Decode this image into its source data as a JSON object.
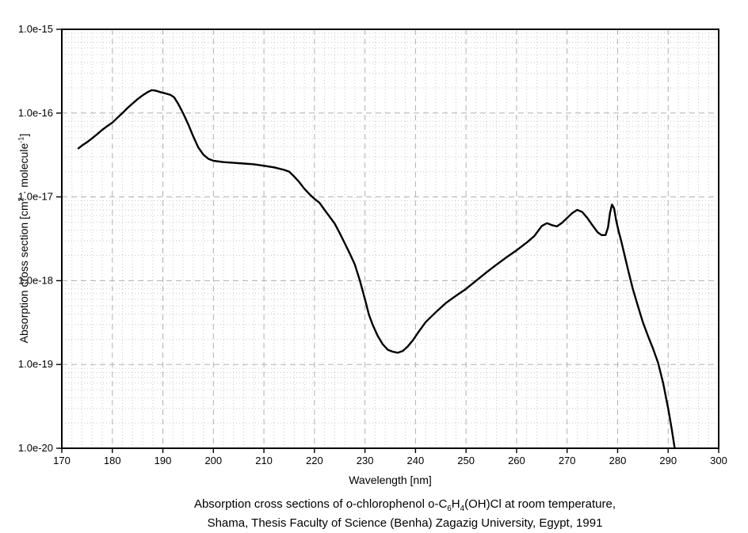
{
  "labels": {
    "x_axis": "Wavelength [nm]",
    "y_axis": {
      "pre": "Absorption cross section [cm",
      "sup1": "2",
      "mid": " · molecule",
      "sup2": "-1",
      "post": "]"
    }
  },
  "caption": {
    "line1": {
      "pre": "Absorption cross sections of o-chlorophenol o-C",
      "sub1": "6",
      "mid": "H",
      "sub2": "4",
      "post": "(OH)Cl at room temperature,"
    },
    "line2": "Shama, Thesis Faculty of Science (Benha) Zagazig University, Egypt, 1991"
  },
  "chart_data": {
    "type": "line",
    "title": "",
    "xlabel": "Wavelength [nm]",
    "ylabel": "Absorption cross section [cm2 · molecule-1]",
    "x_range": [
      170,
      300
    ],
    "y_range": [
      1e-20,
      1e-15
    ],
    "y_scale": "log",
    "x_minor_step": 2,
    "grid": {
      "major": "dashed",
      "minor": "dotted",
      "legend": "none"
    },
    "x_ticks": [
      170,
      180,
      190,
      200,
      210,
      220,
      230,
      240,
      250,
      260,
      270,
      280,
      290,
      300
    ],
    "y_ticks": [
      {
        "label": "1.0e-15",
        "value": 1e-15
      },
      {
        "label": "1.0e-16",
        "value": 1e-16
      },
      {
        "label": "1.0e-17",
        "value": 1e-17
      },
      {
        "label": "1.0e-18",
        "value": 1e-18
      },
      {
        "label": "1.0e-19",
        "value": 1e-19
      },
      {
        "label": "1.0e-20",
        "value": 1e-20
      }
    ],
    "colors": {
      "curve": "#000000",
      "grid_major": "#b0b0b0",
      "grid_minor": "#c9c9c9",
      "axis": "#000000",
      "background": "#ffffff"
    },
    "series": [
      {
        "name": "o-chlorophenol absorption cross section",
        "points": [
          [
            173.3,
            3.8e-17
          ],
          [
            174,
            4.1e-17
          ],
          [
            175,
            4.5e-17
          ],
          [
            176,
            5e-17
          ],
          [
            177,
            5.6e-17
          ],
          [
            178,
            6.3e-17
          ],
          [
            179,
            7e-17
          ],
          [
            180,
            7.7e-17
          ],
          [
            181,
            8.8e-17
          ],
          [
            182,
            1e-16
          ],
          [
            183,
            1.15e-16
          ],
          [
            184,
            1.3e-16
          ],
          [
            185,
            1.47e-16
          ],
          [
            186,
            1.63e-16
          ],
          [
            187,
            1.78e-16
          ],
          [
            187.8,
            1.88e-16
          ],
          [
            188.6,
            1.85e-16
          ],
          [
            189.5,
            1.78e-16
          ],
          [
            190.5,
            1.72e-16
          ],
          [
            191.5,
            1.65e-16
          ],
          [
            192.2,
            1.55e-16
          ],
          [
            193,
            1.3e-16
          ],
          [
            194,
            1e-16
          ],
          [
            195,
            7.4e-17
          ],
          [
            196,
            5.3e-17
          ],
          [
            197,
            3.9e-17
          ],
          [
            198,
            3.2e-17
          ],
          [
            199,
            2.85e-17
          ],
          [
            200,
            2.7e-17
          ],
          [
            202,
            2.6e-17
          ],
          [
            204,
            2.55e-17
          ],
          [
            206,
            2.5e-17
          ],
          [
            208,
            2.45e-17
          ],
          [
            210,
            2.35e-17
          ],
          [
            212,
            2.25e-17
          ],
          [
            214,
            2.1e-17
          ],
          [
            215,
            2e-17
          ],
          [
            216,
            1.75e-17
          ],
          [
            217,
            1.5e-17
          ],
          [
            218,
            1.25e-17
          ],
          [
            219,
            1.08e-17
          ],
          [
            220,
            9.5e-18
          ],
          [
            221,
            8.5e-18
          ],
          [
            222,
            7e-18
          ],
          [
            223,
            5.8e-18
          ],
          [
            224,
            4.8e-18
          ],
          [
            225,
            3.7e-18
          ],
          [
            226,
            2.8e-18
          ],
          [
            227,
            2.1e-18
          ],
          [
            228,
            1.55e-18
          ],
          [
            229,
            1e-18
          ],
          [
            230,
            6e-19
          ],
          [
            230.8,
            3.9e-19
          ],
          [
            231.5,
            3e-19
          ],
          [
            232.5,
            2.2e-19
          ],
          [
            233.5,
            1.75e-19
          ],
          [
            234.5,
            1.5e-19
          ],
          [
            235.5,
            1.42e-19
          ],
          [
            236.5,
            1.38e-19
          ],
          [
            237.5,
            1.45e-19
          ],
          [
            238.5,
            1.65e-19
          ],
          [
            239.5,
            1.95e-19
          ],
          [
            240.5,
            2.4e-19
          ],
          [
            242,
            3.2e-19
          ],
          [
            244,
            4.2e-19
          ],
          [
            246,
            5.4e-19
          ],
          [
            248,
            6.6e-19
          ],
          [
            250,
            8e-19
          ],
          [
            252,
            1e-18
          ],
          [
            254,
            1.25e-18
          ],
          [
            256,
            1.55e-18
          ],
          [
            258,
            1.9e-18
          ],
          [
            260,
            2.3e-18
          ],
          [
            262,
            2.85e-18
          ],
          [
            263.5,
            3.4e-18
          ],
          [
            265,
            4.5e-18
          ],
          [
            266,
            4.85e-18
          ],
          [
            267,
            4.6e-18
          ],
          [
            268,
            4.45e-18
          ],
          [
            269,
            4.9e-18
          ],
          [
            270,
            5.6e-18
          ],
          [
            271,
            6.4e-18
          ],
          [
            272,
            7e-18
          ],
          [
            273,
            6.6e-18
          ],
          [
            274,
            5.6e-18
          ],
          [
            275,
            4.6e-18
          ],
          [
            276,
            3.8e-18
          ],
          [
            276.8,
            3.5e-18
          ],
          [
            277.6,
            3.5e-18
          ],
          [
            278.1,
            4.3e-18
          ],
          [
            278.5,
            6.5e-18
          ],
          [
            278.9,
            8.1e-18
          ],
          [
            279.3,
            7.3e-18
          ],
          [
            279.7,
            5.3e-18
          ],
          [
            280.2,
            3.9e-18
          ],
          [
            280.7,
            3e-18
          ],
          [
            281.3,
            2.1e-18
          ],
          [
            282,
            1.4e-18
          ],
          [
            283,
            8e-19
          ],
          [
            284,
            5e-19
          ],
          [
            285,
            3.2e-19
          ],
          [
            286,
            2.2e-19
          ],
          [
            287,
            1.55e-19
          ],
          [
            288,
            1.05e-19
          ],
          [
            289,
            6e-20
          ],
          [
            290,
            3e-20
          ],
          [
            290.7,
            1.7e-20
          ],
          [
            291.3,
            1e-20
          ]
        ]
      }
    ]
  }
}
